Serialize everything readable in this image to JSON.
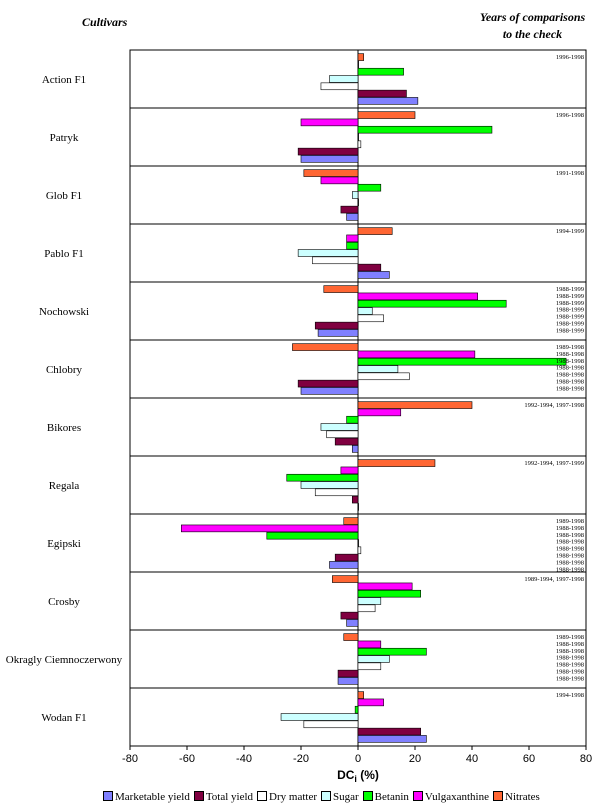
{
  "header": {
    "left": "Cultivars",
    "right_line1": "Years of comparisons",
    "right_line2": "to the check"
  },
  "colors": {
    "Marketable yield": "#8080ff",
    "Total yield": "#800040",
    "Dry matter": "#ffffff",
    "Sugar": "#ccffff",
    "Betanin": "#00ff00",
    "Vulgaxanthine": "#ff00ff",
    "Nitrates": "#ff6633"
  },
  "chart_data": {
    "type": "bar",
    "orientation": "horizontal",
    "xlabel": "DCi (%)",
    "xlim": [
      -80,
      80
    ],
    "xticks": [
      -80,
      -60,
      -40,
      -20,
      0,
      20,
      40,
      60,
      80
    ],
    "grid": false,
    "legend_position": "bottom",
    "categories": [
      "Action F1",
      "Patryk",
      "Glob F1",
      "Pablo F1",
      "Nochowski",
      "Chlobry",
      "Bikores",
      "Regala",
      "Egipski",
      "Crosby",
      "Okragly Ciemnoczerwony",
      "Wodan F1"
    ],
    "series": [
      {
        "name": "Nitrates",
        "values": [
          2,
          20,
          -19,
          12,
          -12,
          -23,
          40,
          27,
          -5,
          -9,
          -5,
          2
        ]
      },
      {
        "name": "Vulgaxanthine",
        "values": [
          0,
          -20,
          -13,
          -4,
          42,
          41,
          15,
          -6,
          -62,
          19,
          8,
          9
        ]
      },
      {
        "name": "Betanin",
        "values": [
          16,
          47,
          8,
          -4,
          52,
          73,
          -4,
          -25,
          -32,
          22,
          24,
          -1
        ]
      },
      {
        "name": "Sugar",
        "values": [
          -10,
          0,
          -2,
          -21,
          5,
          14,
          -13,
          -20,
          0,
          8,
          11,
          -27
        ]
      },
      {
        "name": "Dry matter",
        "values": [
          -13,
          1,
          0,
          -16,
          9,
          18,
          -11,
          -15,
          1,
          6,
          8,
          -19
        ]
      },
      {
        "name": "Total yield",
        "values": [
          17,
          -21,
          -6,
          8,
          -15,
          -21,
          -8,
          -2,
          -8,
          -6,
          -7,
          22
        ]
      },
      {
        "name": "Marketable yield",
        "values": [
          21,
          -20,
          -4,
          11,
          -14,
          -20,
          -2,
          0,
          -10,
          -4,
          -7,
          24
        ]
      }
    ],
    "legend_order": [
      "Marketable yield",
      "Total yield",
      "Dry matter",
      "Sugar",
      "Betanin",
      "Vulgaxanthine",
      "Nitrates"
    ],
    "year_annotations": [
      [
        "1996-1998"
      ],
      [
        "1996-1998"
      ],
      [
        "1991-1998"
      ],
      [
        "1994-1999"
      ],
      [
        "1988-1999",
        "1988-1999",
        "1988-1999",
        "1988-1999",
        "1988-1999",
        "1988-1999",
        "1988-1999"
      ],
      [
        "1989-1998",
        "1988-1998",
        "1988-1998",
        "1988-1998",
        "1988-1998",
        "1988-1998",
        "1988-1998"
      ],
      [
        "1992-1994, 1997-1998"
      ],
      [
        "1992-1994, 1997-1999"
      ],
      [
        "1989-1998",
        "1988-1998",
        "1988-1998",
        "1988-1998",
        "1988-1998",
        "1988-1998",
        "1988-1998",
        "1988-1998"
      ],
      [
        "1989-1994, 1997-1998"
      ],
      [
        "1989-1998",
        "1988-1998",
        "1988-1998",
        "1988-1998",
        "1988-1998",
        "1988-1998",
        "1988-1998"
      ],
      [
        "1994-1998"
      ]
    ]
  }
}
